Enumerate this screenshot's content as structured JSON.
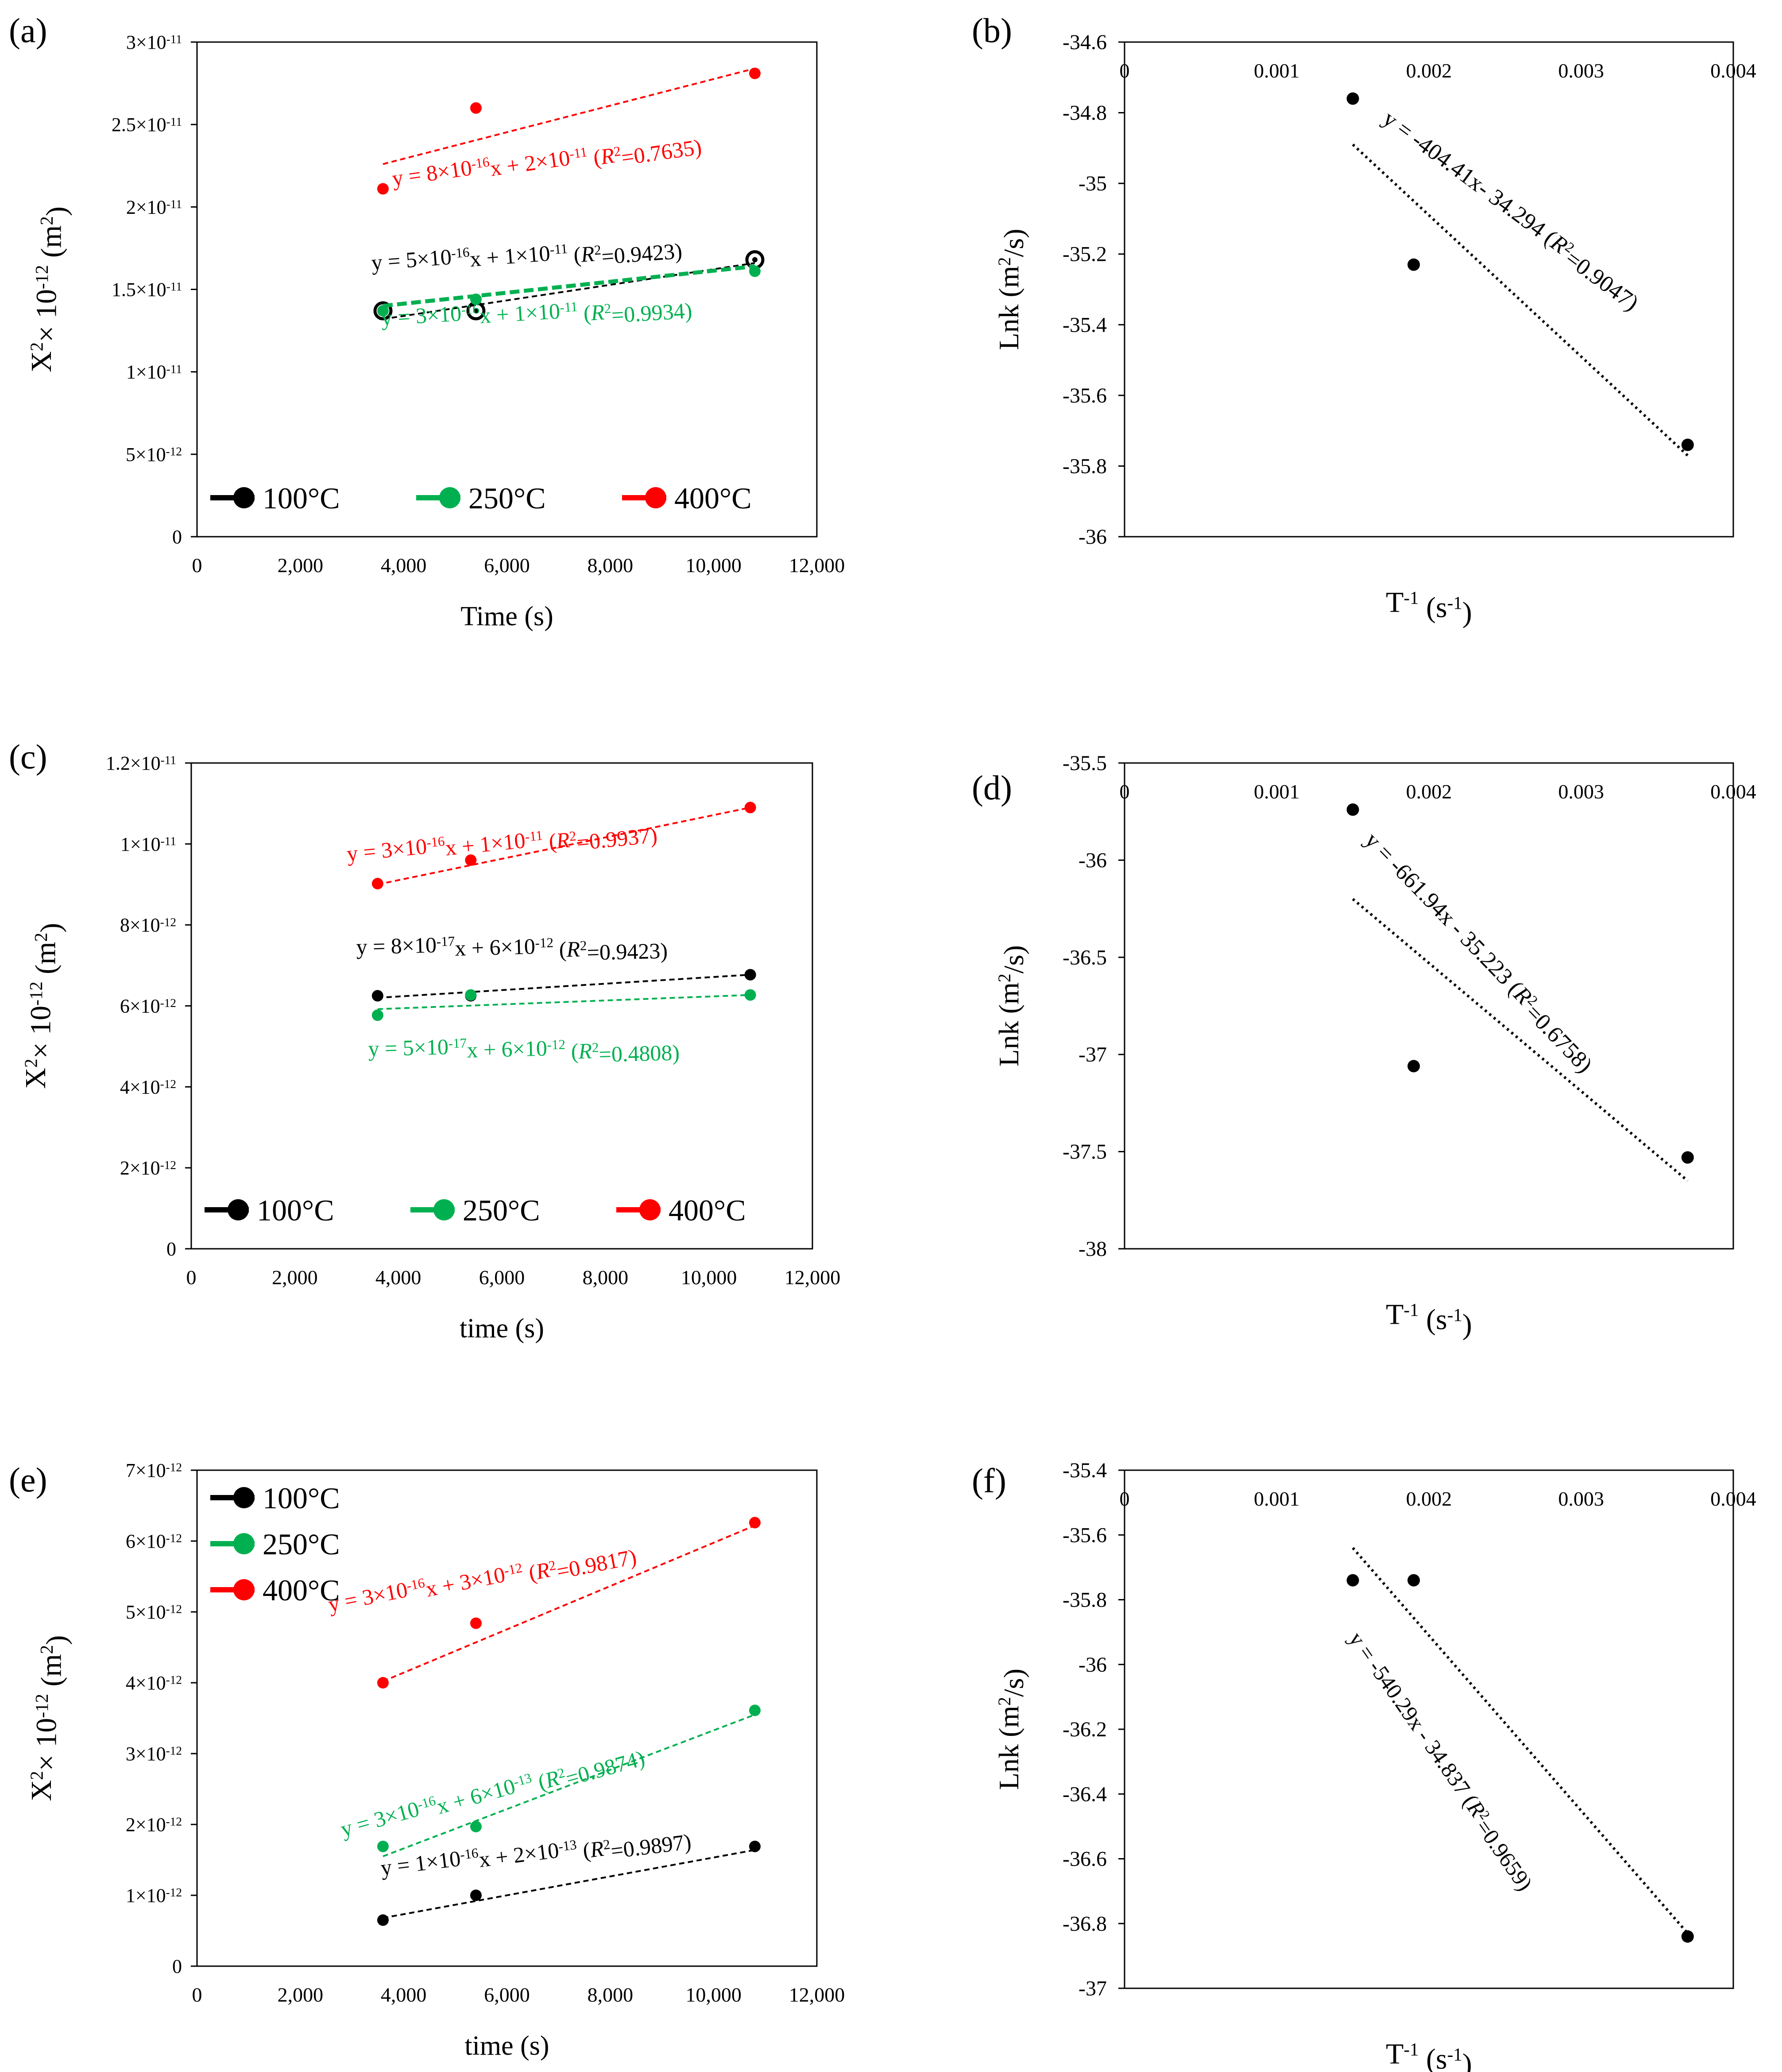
{
  "figure": "Diffusion kinetics panels",
  "colors": {
    "100C": "#000000",
    "250C": "#00b050",
    "400C": "#ff0000",
    "axis": "#000000"
  },
  "chart_data": [
    {
      "id": "a",
      "panel_label": "(a)",
      "type": "scatter",
      "xlabel": "Time (s)",
      "ylabel_parts": [
        "X",
        "2",
        "× 10",
        "-12",
        " (m",
        "2",
        ")"
      ],
      "xlim": [
        0,
        12000
      ],
      "ylim": [
        0,
        3e-11
      ],
      "xticks": [
        "0",
        "2,000",
        "4,000",
        "6,000",
        "8,000",
        "10,000",
        "12,000"
      ],
      "yticks": [
        {
          "m": "0",
          "e": ""
        },
        {
          "m": "5×10",
          "e": "-12"
        },
        {
          "m": "1×10",
          "e": "-11"
        },
        {
          "m": "1.5×10",
          "e": "-11"
        },
        {
          "m": "2×10",
          "e": "-11"
        },
        {
          "m": "2.5×10",
          "e": "-11"
        },
        {
          "m": "3×10",
          "e": "-11"
        }
      ],
      "legend": {
        "position": "bottom",
        "entries": [
          "100°C",
          "250°C",
          "400°C"
        ]
      },
      "series": [
        {
          "name": "100°C",
          "color": "#000000",
          "marker": "ring",
          "x": [
            3600,
            5400,
            10800
          ],
          "y": [
            1.37e-11,
            1.37e-11,
            1.68e-11
          ],
          "fit": [
            [
              3600,
              1.32e-11
            ],
            [
              10800,
              1.66e-11
            ]
          ],
          "equation": "y = 5×10-16x + 1×10-11 (R2=0.9423)",
          "eq_parts": [
            {
              "t": "y = 5×10"
            },
            {
              "t": "-16",
              "sup": 1
            },
            {
              "t": "x + 1×10"
            },
            {
              "t": "-11",
              "sup": 1
            },
            {
              "t": " ("
            },
            {
              "t": "R",
              "it": 1
            },
            {
              "t": "2",
              "sup": 1
            },
            {
              "t": "=0.9423)"
            }
          ]
        },
        {
          "name": "250°C",
          "color": "#00b050",
          "marker": "dot",
          "thickfit": true,
          "x": [
            3600,
            5400,
            10800
          ],
          "y": [
            1.37e-11,
            1.44e-11,
            1.61e-11
          ],
          "fit": [
            [
              3600,
              1.4e-11
            ],
            [
              10800,
              1.64e-11
            ]
          ],
          "equation": "y = 3×10-16x + 1×10-11 (R2=0.9934)",
          "eq_parts": [
            {
              "t": "y = 3×10"
            },
            {
              "t": "-16",
              "sup": 1
            },
            {
              "t": "x + 1×10"
            },
            {
              "t": "-11",
              "sup": 1
            },
            {
              "t": " ("
            },
            {
              "t": "R",
              "it": 1
            },
            {
              "t": "2",
              "sup": 1
            },
            {
              "t": "=0.9934)"
            }
          ]
        },
        {
          "name": "400°C",
          "color": "#ff0000",
          "marker": "dot",
          "x": [
            3600,
            5400,
            10800
          ],
          "y": [
            2.11e-11,
            2.6e-11,
            2.81e-11
          ],
          "fit": [
            [
              3600,
              2.26e-11
            ],
            [
              10800,
              2.84e-11
            ]
          ],
          "equation": "y = 8×10-16x + 2×10-11 (R2=0.7635)",
          "eq_parts": [
            {
              "t": "y = 8×10"
            },
            {
              "t": "-16",
              "sup": 1
            },
            {
              "t": "x + 2×10"
            },
            {
              "t": "-11",
              "sup": 1
            },
            {
              "t": " ("
            },
            {
              "t": "R",
              "it": 1
            },
            {
              "t": "2",
              "sup": 1
            },
            {
              "t": "=0.7635)"
            }
          ]
        }
      ]
    },
    {
      "id": "b",
      "panel_label": "(b)",
      "type": "scatter",
      "xlabel_parts": [
        "T",
        "-1",
        " (s",
        "-1",
        ")"
      ],
      "ylabel_parts": [
        "Lnk (m",
        "2",
        "/s)"
      ],
      "xlim": [
        0,
        0.004
      ],
      "ylim": [
        -36,
        -34.6
      ],
      "xticks": [
        "0",
        "0.001",
        "0.002",
        "0.003",
        "0.004"
      ],
      "yticks": [
        "-34.6",
        "-34.8",
        "-35",
        "-35.2",
        "-35.4",
        "-35.6",
        "-35.8",
        "-36"
      ],
      "series": [
        {
          "name": "Lnk",
          "color": "#000000",
          "marker": "dot",
          "x": [
            0.0015,
            0.0019,
            0.0037
          ],
          "y": [
            -34.76,
            -35.23,
            -35.74
          ],
          "fit": [
            [
              0.0015,
              -34.89
            ],
            [
              0.0037,
              -35.77
            ]
          ],
          "equation": "y = -404.41x- 34.294 (R2=0.9047)",
          "eq_parts": [
            {
              "t": "y = -404.41x- 34.294 ("
            },
            {
              "t": "R",
              "it": 1
            },
            {
              "t": "2",
              "sup": 1
            },
            {
              "t": "=0.9047)"
            }
          ]
        }
      ]
    },
    {
      "id": "c",
      "panel_label": "(c)",
      "type": "scatter",
      "xlabel": "time (s)",
      "ylabel_parts": [
        "X",
        "2",
        "× 10",
        "-12",
        " (m",
        "2",
        ")"
      ],
      "xlim": [
        0,
        12000
      ],
      "ylim": [
        0,
        1.2e-11
      ],
      "xticks": [
        "0",
        "2,000",
        "4,000",
        "6,000",
        "8,000",
        "10,000",
        "12,000"
      ],
      "yticks": [
        {
          "m": "0",
          "e": ""
        },
        {
          "m": "2×10",
          "e": "-12"
        },
        {
          "m": "4×10",
          "e": "-12"
        },
        {
          "m": "6×10",
          "e": "-12"
        },
        {
          "m": "8×10",
          "e": "-12"
        },
        {
          "m": "1×10",
          "e": "-11"
        },
        {
          "m": "1.2×10",
          "e": "-11"
        }
      ],
      "legend": {
        "position": "bottom",
        "entries": [
          "100°C",
          "250°C",
          "400°C"
        ]
      },
      "series": [
        {
          "name": "100°C",
          "color": "#000000",
          "marker": "dot",
          "x": [
            3600,
            5400,
            10800
          ],
          "y": [
            6.25e-12,
            6.25e-12,
            6.77e-12
          ],
          "fit": [
            [
              3600,
              6.2e-12
            ],
            [
              10800,
              6.77e-12
            ]
          ],
          "equation": "y = 8×10-17x + 6×10-12 (R2=0.9423)",
          "eq_parts": [
            {
              "t": "y = 8×10"
            },
            {
              "t": "-17",
              "sup": 1
            },
            {
              "t": "x + 6×10"
            },
            {
              "t": "-12",
              "sup": 1
            },
            {
              "t": "      ("
            },
            {
              "t": "R",
              "it": 1
            },
            {
              "t": "2",
              "sup": 1
            },
            {
              "t": "=0.9423)"
            }
          ]
        },
        {
          "name": "250°C",
          "color": "#00b050",
          "marker": "dot",
          "x": [
            3600,
            5400,
            10800
          ],
          "y": [
            5.77e-12,
            6.27e-12,
            6.27e-12
          ],
          "fit": [
            [
              3600,
              5.92e-12
            ],
            [
              10800,
              6.27e-12
            ]
          ],
          "equation": "y = 5×10-17x + 6×10-12 (R2=0.4808)",
          "eq_parts": [
            {
              "t": "y = 5×10"
            },
            {
              "t": "-17",
              "sup": 1
            },
            {
              "t": "x + 6×10"
            },
            {
              "t": "-12",
              "sup": 1
            },
            {
              "t": " ("
            },
            {
              "t": "R",
              "it": 1
            },
            {
              "t": "2",
              "sup": 1
            },
            {
              "t": "=0.4808)"
            }
          ]
        },
        {
          "name": "400°C",
          "color": "#ff0000",
          "marker": "dot",
          "x": [
            3600,
            5400,
            10800
          ],
          "y": [
            9.02e-12,
            9.6e-12,
            1.09e-11
          ],
          "fit": [
            [
              3600,
              9e-12
            ],
            [
              10800,
              1.09e-11
            ]
          ],
          "equation": "y = 3×10-16x + 1×10-11 (R2=0.9937)",
          "eq_parts": [
            {
              "t": "y = 3×10"
            },
            {
              "t": "-16",
              "sup": 1
            },
            {
              "t": "x + 1×10"
            },
            {
              "t": "-11",
              "sup": 1
            },
            {
              "t": "      ("
            },
            {
              "t": "R",
              "it": 1
            },
            {
              "t": "2",
              "sup": 1
            },
            {
              "t": "=0.9937)"
            }
          ]
        }
      ]
    },
    {
      "id": "d",
      "panel_label": "(d)",
      "type": "scatter",
      "xlabel_parts": [
        "T",
        "-1",
        " (s",
        "-1",
        ")"
      ],
      "ylabel_parts": [
        "Lnk (m",
        "2",
        "/s)"
      ],
      "xlim": [
        0,
        0.004
      ],
      "ylim": [
        -38,
        -35.5
      ],
      "xticks": [
        "0",
        "0.001",
        "0.002",
        "0.003",
        "0.004"
      ],
      "yticks": [
        "-35.5",
        "-36",
        "-36.5",
        "-37",
        "-37.5",
        "-38"
      ],
      "series": [
        {
          "name": "Lnk",
          "color": "#000000",
          "marker": "dot",
          "x": [
            0.0015,
            0.0019,
            0.0037
          ],
          "y": [
            -35.74,
            -37.06,
            -37.53
          ],
          "fit": [
            [
              0.0015,
              -36.2
            ],
            [
              0.0037,
              -37.65
            ]
          ],
          "equation": "y = -661.94x - 35.223 (R2=0.6758)",
          "eq_parts": [
            {
              "t": "y = -661.94x - 35.223 ("
            },
            {
              "t": "R",
              "it": 1
            },
            {
              "t": "2",
              "sup": 1
            },
            {
              "t": "=0.6758)"
            }
          ]
        }
      ]
    },
    {
      "id": "e",
      "panel_label": "(e)",
      "type": "scatter",
      "xlabel": "time (s)",
      "ylabel_parts": [
        "X",
        "2",
        "× 10",
        "-12",
        " (m",
        "2",
        ")"
      ],
      "xlim": [
        0,
        12000
      ],
      "ylim": [
        0,
        7e-12
      ],
      "xticks": [
        "0",
        "2,000",
        "4,000",
        "6,000",
        "8,000",
        "10,000",
        "12,000"
      ],
      "yticks": [
        {
          "m": "0",
          "e": ""
        },
        {
          "m": "1×10",
          "e": "-12"
        },
        {
          "m": "2×10",
          "e": "-12"
        },
        {
          "m": "3×10",
          "e": "-12"
        },
        {
          "m": "4×10",
          "e": "-12"
        },
        {
          "m": "5×10",
          "e": "-12"
        },
        {
          "m": "6×10",
          "e": "-12"
        },
        {
          "m": "7×10",
          "e": "-12"
        }
      ],
      "legend": {
        "position": "top-left",
        "entries": [
          "100°C",
          "250°C",
          "400°C"
        ]
      },
      "series": [
        {
          "name": "100°C",
          "color": "#000000",
          "marker": "dot",
          "x": [
            3600,
            5400,
            10800
          ],
          "y": [
            6.5e-13,
            1e-12,
            1.69e-12
          ],
          "fit": [
            [
              3600,
              6.8e-13
            ],
            [
              10800,
              1.64e-12
            ]
          ],
          "equation": "y = 1×10-16x + 2×10-13 (R2=0.9897)",
          "eq_parts": [
            {
              "t": "y = 1×10"
            },
            {
              "t": "-16",
              "sup": 1
            },
            {
              "t": "x + 2×10"
            },
            {
              "t": "-13",
              "sup": 1
            },
            {
              "t": " ("
            },
            {
              "t": "R",
              "it": 1
            },
            {
              "t": "2",
              "sup": 1
            },
            {
              "t": "=0.9897)"
            }
          ]
        },
        {
          "name": "250°C",
          "color": "#00b050",
          "marker": "dot",
          "x": [
            3600,
            5400,
            10800
          ],
          "y": [
            1.69e-12,
            1.97e-12,
            3.61e-12
          ],
          "fit": [
            [
              3600,
              1.55e-12
            ],
            [
              10800,
              3.55e-12
            ]
          ],
          "equation": "y = 3×10-16x + 6×10-13 (R2=0.9874)",
          "eq_parts": [
            {
              "t": "y = 3×10"
            },
            {
              "t": "-16",
              "sup": 1
            },
            {
              "t": "x + 6×10"
            },
            {
              "t": "-13",
              "sup": 1
            },
            {
              "t": "         ("
            },
            {
              "t": "R",
              "it": 1
            },
            {
              "t": "2",
              "sup": 1
            },
            {
              "t": "=0.9874)"
            }
          ]
        },
        {
          "name": "400°C",
          "color": "#ff0000",
          "marker": "dot",
          "x": [
            3600,
            5400,
            10800
          ],
          "y": [
            4e-12,
            4.84e-12,
            6.26e-12
          ],
          "fit": [
            [
              3600,
              4.02e-12
            ],
            [
              10800,
              6.22e-12
            ]
          ],
          "equation": "y = 3×10-16x + 3×10-12 (R2=0.9817)",
          "eq_parts": [
            {
              "t": "y = 3×10"
            },
            {
              "t": "-16",
              "sup": 1
            },
            {
              "t": "x + 3×10"
            },
            {
              "t": "-12",
              "sup": 1
            },
            {
              "t": "         ("
            },
            {
              "t": "R",
              "it": 1
            },
            {
              "t": "2",
              "sup": 1
            },
            {
              "t": "=0.9817)"
            }
          ]
        }
      ]
    },
    {
      "id": "f",
      "panel_label": "(f)",
      "type": "scatter",
      "xlabel_parts": [
        "T",
        "-1",
        " (s",
        "-1",
        ")"
      ],
      "ylabel_parts": [
        "Lnk (m",
        "2",
        "/s)"
      ],
      "xlim": [
        0,
        0.004
      ],
      "ylim": [
        -37,
        -35.4
      ],
      "xticks": [
        "0",
        "0.001",
        "0.002",
        "0.003",
        "0.004"
      ],
      "yticks": [
        "-35.4",
        "-35.6",
        "-35.8",
        "-36",
        "-36.2",
        "-36.4",
        "-36.6",
        "-36.8",
        "-37"
      ],
      "series": [
        {
          "name": "Lnk",
          "color": "#000000",
          "marker": "dot",
          "x": [
            0.0015,
            0.0019,
            0.0037
          ],
          "y": [
            -35.74,
            -35.74,
            -36.84
          ],
          "fit": [
            [
              0.0015,
              -35.64
            ],
            [
              0.0037,
              -36.83
            ]
          ],
          "equation": "y = -540.29x - 34.837 (R2=0.9659)",
          "eq_parts": [
            {
              "t": "y = -540.29x - 34.837 ("
            },
            {
              "t": "R",
              "it": 1
            },
            {
              "t": "2",
              "sup": 1
            },
            {
              "t": "=0.9659)"
            }
          ]
        }
      ]
    }
  ]
}
